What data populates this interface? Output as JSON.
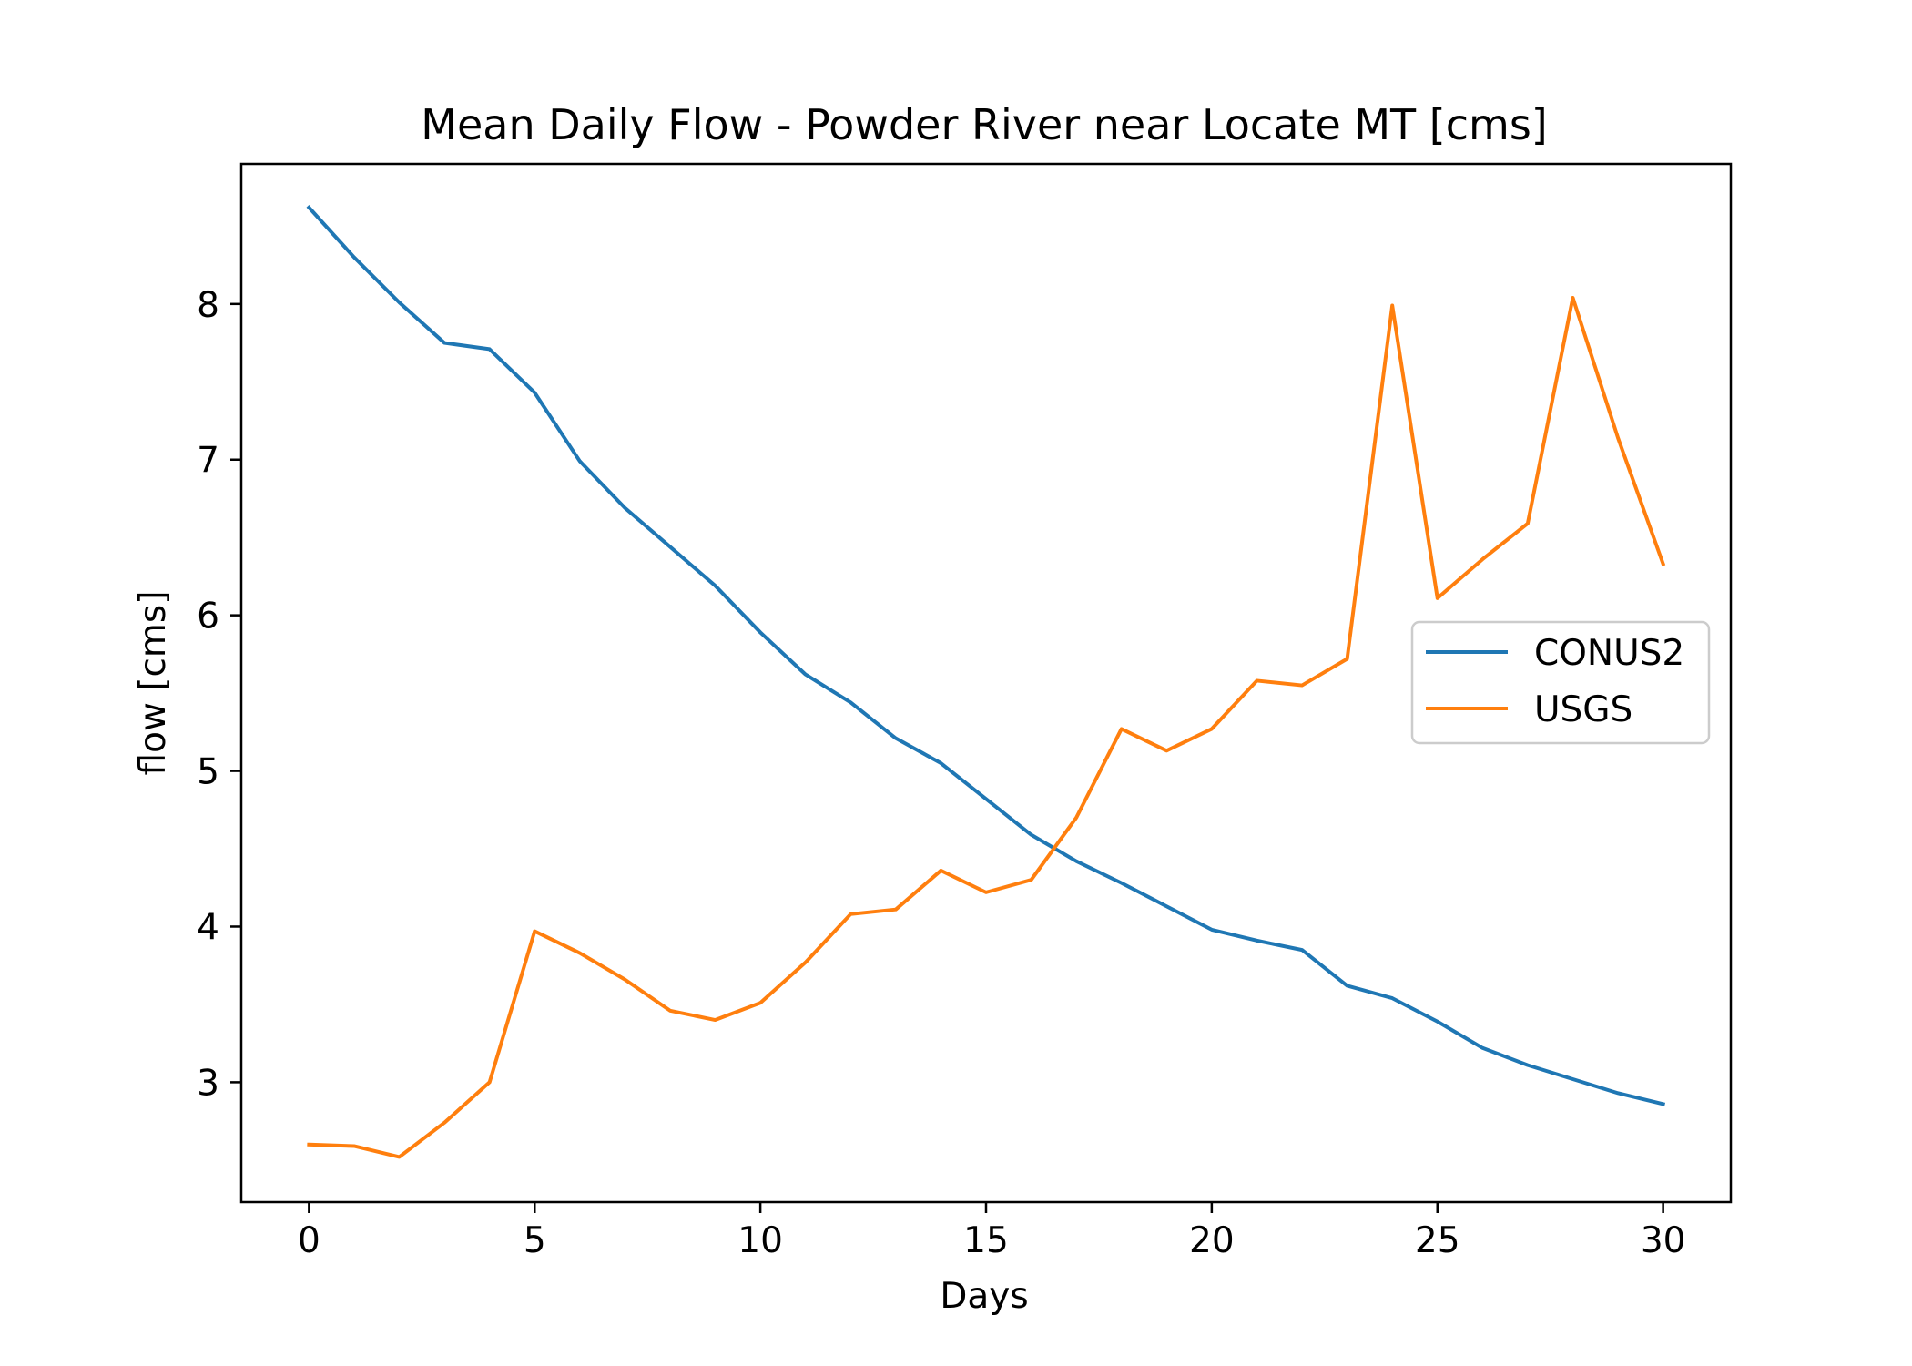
{
  "chart_data": {
    "type": "line",
    "title": "Mean Daily Flow - Powder River near Locate MT [cms]",
    "xlabel": "Days",
    "ylabel": "flow [cms]",
    "xlim": [
      -1.5,
      31.5
    ],
    "ylim": [
      2.23,
      8.9
    ],
    "xticks": [
      0,
      5,
      10,
      15,
      20,
      25,
      30
    ],
    "yticks": [
      3,
      4,
      5,
      6,
      7,
      8
    ],
    "grid": false,
    "legend": "center-right",
    "x": [
      0,
      1,
      2,
      3,
      4,
      5,
      6,
      7,
      8,
      9,
      10,
      11,
      12,
      13,
      14,
      15,
      16,
      17,
      18,
      19,
      20,
      21,
      22,
      23,
      24,
      25,
      26,
      27,
      28,
      29,
      30
    ],
    "series": [
      {
        "name": "CONUS2",
        "color": "#1f77b4",
        "values": [
          8.62,
          8.3,
          8.01,
          7.75,
          7.71,
          7.43,
          6.99,
          6.69,
          6.44,
          6.19,
          5.89,
          5.62,
          5.44,
          5.21,
          5.05,
          4.82,
          4.59,
          4.42,
          4.28,
          4.13,
          3.98,
          3.91,
          3.85,
          3.62,
          3.54,
          3.39,
          3.22,
          3.11,
          3.02,
          2.93,
          2.86
        ]
      },
      {
        "name": "USGS",
        "color": "#ff7f0e",
        "values": [
          2.6,
          2.59,
          2.52,
          2.74,
          3.0,
          3.97,
          3.83,
          3.66,
          3.46,
          3.4,
          3.51,
          3.77,
          4.08,
          4.11,
          4.36,
          4.22,
          4.3,
          4.7,
          5.27,
          5.13,
          5.27,
          5.58,
          5.55,
          5.72,
          7.99,
          6.11,
          6.36,
          6.59,
          8.04,
          7.14,
          6.33
        ]
      }
    ]
  }
}
